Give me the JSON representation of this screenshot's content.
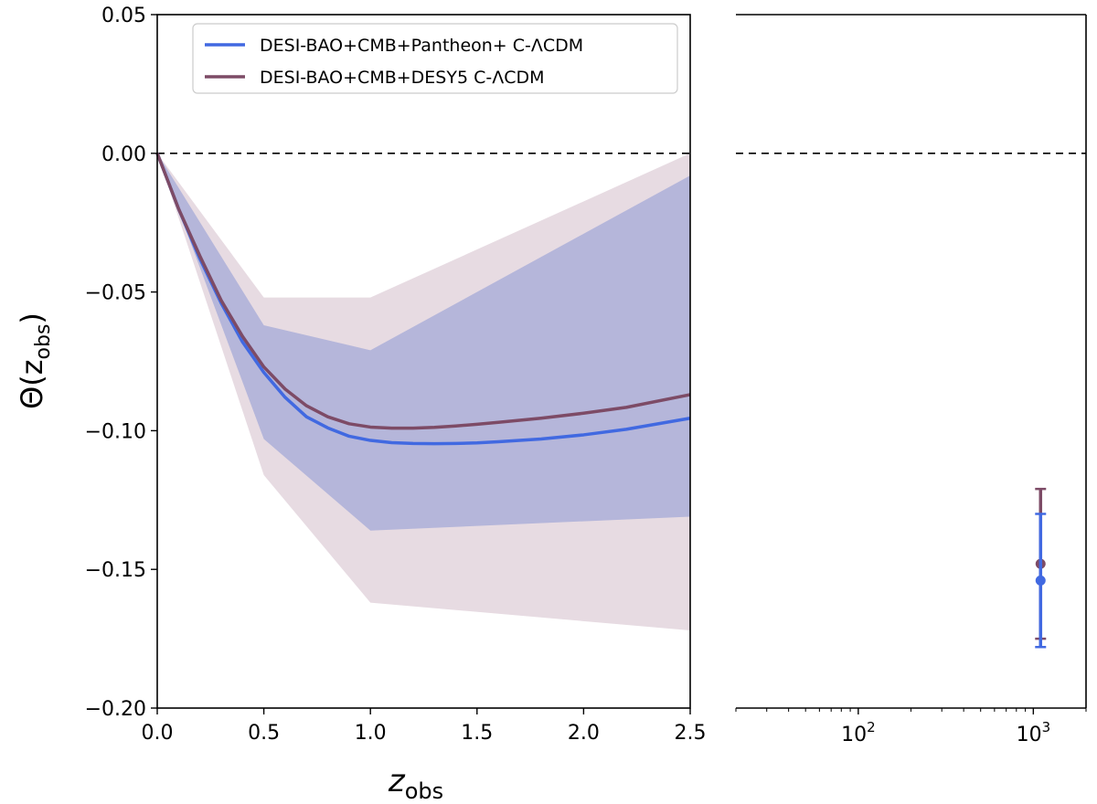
{
  "chart_data": [
    {
      "panel": "main",
      "type": "line",
      "xlabel_main": "z",
      "xlabel_sub": "obs",
      "ylabel_main": "Θ(z",
      "ylabel_sub": "obs",
      "ylabel_close": ")",
      "xlim": [
        0.0,
        2.5
      ],
      "ylim": [
        -0.2,
        0.05
      ],
      "x_ticks": [
        0.0,
        0.5,
        1.0,
        1.5,
        2.0,
        2.5
      ],
      "x_tick_labels": [
        "0.0",
        "0.5",
        "1.0",
        "1.5",
        "2.0",
        "2.5"
      ],
      "y_ticks": [
        0.05,
        0.0,
        -0.05,
        -0.1,
        -0.15,
        -0.2
      ],
      "y_tick_labels": [
        "0.05",
        "0.00",
        "−0.05",
        "−0.10",
        "−0.15",
        "−0.20"
      ],
      "reference_line": {
        "y": 0.0,
        "style": "dashed",
        "color": "#000000"
      },
      "bands": [
        {
          "name": "DESI-BAO+CMB+DESY5 C-ΛCDM 1σ",
          "color": "#e7dbe2",
          "x": [
            0.0,
            0.5,
            1.0,
            2.5
          ],
          "upper": [
            0.0,
            -0.052,
            -0.052,
            0.0
          ],
          "lower": [
            0.0,
            -0.116,
            -0.162,
            -0.172
          ]
        },
        {
          "name": "DESI-BAO+CMB+Pantheon+ C-ΛCDM 1σ",
          "color": "#b5b6da",
          "x": [
            0.0,
            0.5,
            1.0,
            2.5
          ],
          "upper": [
            0.0,
            -0.062,
            -0.071,
            -0.008
          ],
          "lower": [
            0.0,
            -0.103,
            -0.136,
            -0.131
          ]
        }
      ],
      "series": [
        {
          "name": "DESI-BAO+CMB+Pantheon+ C-ΛCDM",
          "color": "#4169e1",
          "x": [
            0.0,
            0.1,
            0.2,
            0.3,
            0.4,
            0.5,
            0.6,
            0.7,
            0.8,
            0.9,
            1.0,
            1.1,
            1.2,
            1.3,
            1.4,
            1.5,
            1.6,
            1.8,
            2.0,
            2.2,
            2.5
          ],
          "y": [
            0.0,
            -0.02,
            -0.038,
            -0.054,
            -0.068,
            -0.079,
            -0.088,
            -0.095,
            -0.099,
            -0.102,
            -0.1035,
            -0.1043,
            -0.1046,
            -0.1047,
            -0.1046,
            -0.1044,
            -0.104,
            -0.103,
            -0.1015,
            -0.0995,
            -0.0955
          ]
        },
        {
          "name": "DESI-BAO+CMB+DESY5 C-ΛCDM",
          "color": "#7d4b66",
          "x": [
            0.0,
            0.1,
            0.2,
            0.3,
            0.4,
            0.5,
            0.6,
            0.7,
            0.8,
            0.9,
            1.0,
            1.1,
            1.2,
            1.3,
            1.4,
            1.5,
            1.6,
            1.8,
            2.0,
            2.2,
            2.5
          ],
          "y": [
            0.0,
            -0.02,
            -0.037,
            -0.053,
            -0.066,
            -0.077,
            -0.085,
            -0.091,
            -0.095,
            -0.0975,
            -0.0987,
            -0.0991,
            -0.0991,
            -0.0988,
            -0.0983,
            -0.0977,
            -0.097,
            -0.0955,
            -0.0937,
            -0.0916,
            -0.087
          ]
        }
      ],
      "legend": {
        "position": "top-left",
        "entries": [
          {
            "label": "DESI-BAO+CMB+Pantheon+ C-ΛCDM",
            "color": "#4169e1"
          },
          {
            "label": "DESI-BAO+CMB+DESY5 C-ΛCDM",
            "color": "#7d4b66"
          }
        ]
      }
    },
    {
      "panel": "right",
      "type": "scatter",
      "x_scale": "log",
      "xlim": [
        20,
        2000
      ],
      "ylim": [
        -0.2,
        0.05
      ],
      "x_tick_labels": [
        {
          "value": 100,
          "base": "10",
          "exp": "2"
        },
        {
          "value": 1000,
          "base": "10",
          "exp": "3"
        }
      ],
      "reference_line": {
        "y": 0.0,
        "style": "dashed",
        "color": "#000000"
      },
      "points": [
        {
          "name": "DESI-BAO+CMB+DESY5 C-ΛCDM",
          "color": "#7d4b66",
          "x": 1100,
          "y": -0.148,
          "err_up": 0.027,
          "err_down": 0.027
        },
        {
          "name": "DESI-BAO+CMB+Pantheon+ C-ΛCDM",
          "color": "#4169e1",
          "x": 1100,
          "y": -0.154,
          "err_up": 0.024,
          "err_down": 0.024
        }
      ]
    }
  ]
}
